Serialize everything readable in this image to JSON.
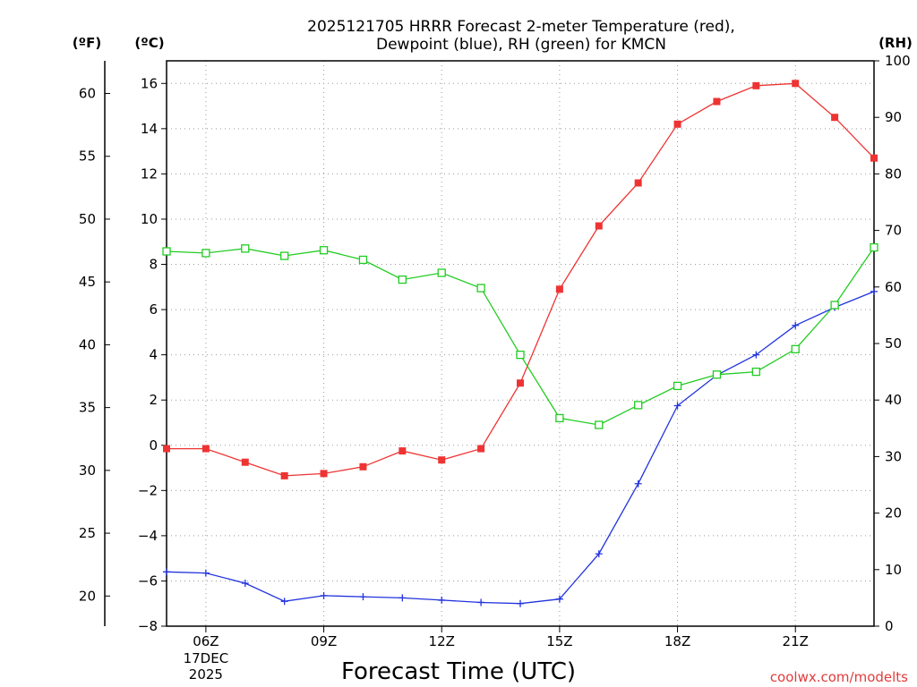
{
  "chart_data": {
    "type": "line",
    "title_lines": [
      "2025121705 HRRR Forecast 2-meter Temperature (red),",
      "Dewpoint (blue), RH (green) for KMCN"
    ],
    "xlabel": "Forecast Time (UTC)",
    "credit": "coolwx.com/modelts",
    "x_hours": [
      5,
      6,
      7,
      8,
      9,
      10,
      11,
      12,
      13,
      14,
      15,
      16,
      17,
      18,
      19,
      20,
      21,
      22,
      23
    ],
    "x_ticks": [
      {
        "hour": 6,
        "label": "06Z",
        "sub": [
          "17DEC",
          "2025"
        ]
      },
      {
        "hour": 9,
        "label": "09Z"
      },
      {
        "hour": 12,
        "label": "12Z"
      },
      {
        "hour": 15,
        "label": "15Z"
      },
      {
        "hour": 18,
        "label": "18Z"
      },
      {
        "hour": 21,
        "label": "21Z"
      }
    ],
    "xlim": [
      5,
      23
    ],
    "grid": true,
    "celsius_axis": {
      "unit": "(ºC)",
      "range": [
        -8,
        17
      ],
      "ticks": [
        -8,
        -6,
        -4,
        -2,
        0,
        2,
        4,
        6,
        8,
        10,
        12,
        14,
        16
      ],
      "tick_labels": [
        "−8",
        "−6",
        "−4",
        "−2",
        "0",
        "2",
        "4",
        "6",
        "8",
        "10",
        "12",
        "14",
        "16"
      ]
    },
    "fahrenheit_axis": {
      "unit": "(ºF)",
      "ticks": [
        20,
        25,
        30,
        35,
        40,
        45,
        50,
        55,
        60
      ]
    },
    "rh_axis": {
      "unit": "(RH)",
      "range": [
        0,
        100
      ],
      "ticks": [
        0,
        10,
        20,
        30,
        40,
        50,
        60,
        70,
        80,
        90,
        100
      ]
    },
    "series": [
      {
        "name": "Temperature",
        "axis": "celsius",
        "color": "#ee3333",
        "marker": "filled-square",
        "values": [
          -0.15,
          -0.15,
          -0.75,
          -1.35,
          -1.25,
          -0.95,
          -0.25,
          -0.65,
          -0.15,
          2.75,
          6.9,
          9.7,
          11.6,
          14.2,
          15.2,
          15.9,
          16.0,
          14.5,
          12.7
        ]
      },
      {
        "name": "Dewpoint",
        "axis": "celsius",
        "color": "#2233dd",
        "marker": "plus",
        "values": [
          -5.6,
          -5.65,
          -6.1,
          -6.9,
          -6.65,
          -6.7,
          -6.75,
          -6.85,
          -6.95,
          -7.0,
          -6.8,
          -4.8,
          -1.7,
          1.75,
          3.1,
          4.0,
          5.3,
          6.1,
          6.8
        ]
      },
      {
        "name": "RH",
        "axis": "rh",
        "color": "#22cc22",
        "marker": "open-square",
        "values": [
          66.3,
          66.0,
          66.8,
          65.5,
          66.5,
          64.8,
          61.3,
          62.5,
          59.8,
          48.0,
          36.8,
          35.6,
          39.1,
          42.5,
          44.5,
          45.0,
          49.0,
          56.8,
          67.0
        ]
      }
    ]
  }
}
